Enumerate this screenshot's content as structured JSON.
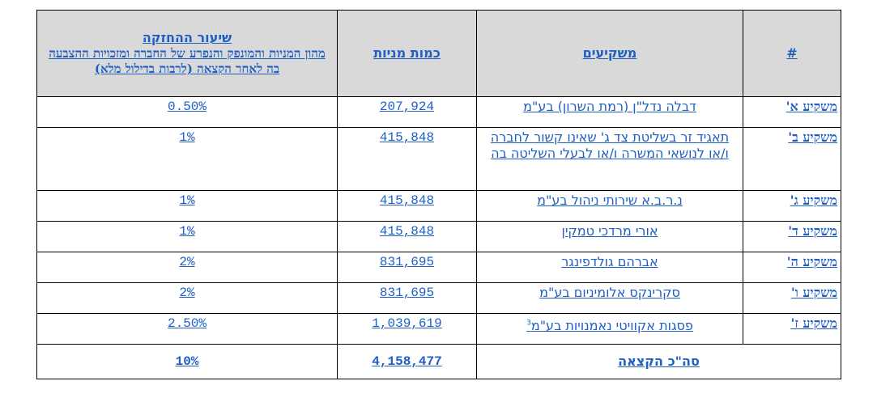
{
  "table": {
    "headers": {
      "number": "#",
      "investors": "משקיעים",
      "shares": "כמות מניות",
      "rate_title": "שיעור ההחזקה",
      "rate_note": "מהון המניות והמונפק והנפרע של החברה ומזכויות ההצבעה בה לאחר הקצאה  (לרבות בדילול מלא)"
    },
    "rows": [
      {
        "investor": "משקיע א'",
        "name": "דבלה נדל\"ן (רמת השרון) בע\"מ",
        "shares": "207,924",
        "rate": "0.50%"
      },
      {
        "investor": "משקיע ב'",
        "name": "תאגיד זר בשליטת צד ג' שאינו קשור לחברה ו/או לנושאי המשרה ו/או לבעלי השליטה בה",
        "shares": "415,848",
        "rate": "1%"
      },
      {
        "investor": "משקיע ג'",
        "name": "נ.ר.ב.א שירותי ניהול בע\"מ",
        "shares": "415,848",
        "rate": "1%"
      },
      {
        "investor": "משקיע ד'",
        "name": "אורי מרדכי טמקין",
        "shares": "415,848",
        "rate": "1%"
      },
      {
        "investor": "משקיע ה'",
        "name": "אברהם גולדפינגר",
        "shares": "831,695",
        "rate": "2%"
      },
      {
        "investor": "משקיע ו'",
        "name": "סקרינקס אלומיניום בע\"מ",
        "shares": "831,695",
        "rate": "2%"
      },
      {
        "investor": "משקיע ז'",
        "name": "פסגות אקוויטי נאמנויות בע\"מ",
        "footnote": "3",
        "shares": "1,039,619",
        "rate": "2.50%"
      }
    ],
    "total": {
      "label": "סה\"כ הקצאה",
      "shares": "4,158,477",
      "rate": "10%"
    }
  }
}
